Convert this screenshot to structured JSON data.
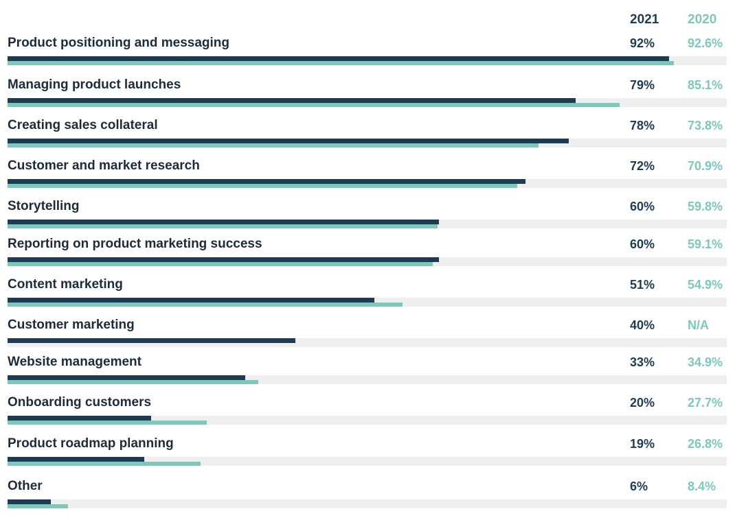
{
  "chart_data": {
    "type": "bar",
    "orientation": "horizontal",
    "title": "",
    "xlim": [
      0,
      100
    ],
    "legend": "top-right",
    "categories": [
      "Product positioning and messaging",
      "Managing product launches",
      "Creating sales collateral",
      "Customer and market research",
      "Storytelling",
      "Reporting on product marketing success",
      "Content marketing",
      "Customer marketing",
      "Website management",
      "Onboarding customers",
      "Product roadmap planning",
      "Other"
    ],
    "series": [
      {
        "name": "2021",
        "color": "#1d3b52",
        "values": [
          92,
          79,
          78,
          72,
          60,
          60,
          51,
          40,
          33,
          20,
          19,
          6
        ],
        "labels": [
          "92%",
          "79%",
          "78%",
          "72%",
          "60%",
          "60%",
          "51%",
          "40%",
          "33%",
          "20%",
          "19%",
          "6%"
        ]
      },
      {
        "name": "2020",
        "color": "#7cc8bb",
        "values": [
          92.6,
          85.1,
          73.8,
          70.9,
          59.8,
          59.1,
          54.9,
          null,
          34.9,
          27.7,
          26.8,
          8.4
        ],
        "labels": [
          "92.6%",
          "85.1%",
          "73.8%",
          "70.9%",
          "59.8%",
          "59.1%",
          "54.9%",
          "N/A",
          "34.9%",
          "27.7%",
          "26.8%",
          "8.4%"
        ]
      }
    ]
  }
}
